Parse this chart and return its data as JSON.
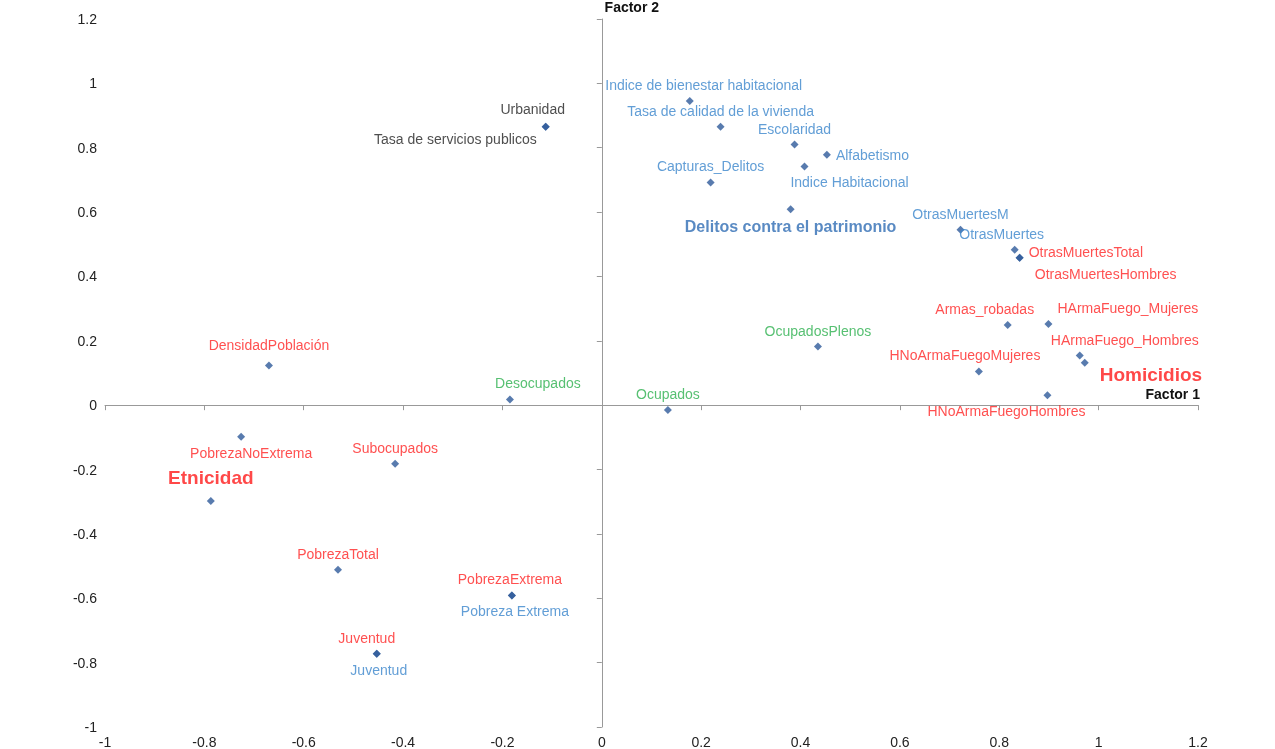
{
  "chart_data": {
    "type": "scatter",
    "xlabel": "Factor 1",
    "ylabel": "Factor 2",
    "xlim": [
      -1,
      1.2
    ],
    "ylim": [
      -1,
      1.2
    ],
    "xticks": [
      -1,
      -0.8,
      -0.6,
      -0.4,
      -0.2,
      0,
      0.2,
      0.4,
      0.6,
      0.8,
      1,
      1.2
    ],
    "yticks": [
      -1,
      -0.8,
      -0.6,
      -0.4,
      -0.2,
      0,
      0.2,
      0.4,
      0.6,
      0.8,
      1,
      1.2
    ],
    "marker": "diamond",
    "series": [
      {
        "color": "#2e5a9a",
        "x": [
          0.177,
          0.239,
          0.388,
          0.453,
          0.408,
          0.219,
          0.722,
          0.831,
          -0.181,
          -0.453
        ],
        "values": [
          0.945,
          0.865,
          0.81,
          0.778,
          0.742,
          0.692,
          0.545,
          0.483,
          -0.591,
          -0.772
        ],
        "value_labels": [
          "Indice de bienestar habitacional",
          "Tasa de calidad de la vivienda",
          "Escolaridad",
          "Alfabetismo",
          "Indice Habitacional",
          "Capturas_Delitos",
          "OtrasMuertesM",
          "OtrasMuertes",
          "Pobreza Extrema",
          "Juventud"
        ]
      },
      {
        "color": "#2e5a9a",
        "x": [
          0.38
        ],
        "values": [
          0.609
        ],
        "value_labels": [
          "Delitos contra el patrimonio"
        ]
      },
      {
        "color": "#2e5a9a",
        "x": [
          -0.113,
          -0.113
        ],
        "values": [
          0.865,
          0.865
        ],
        "value_labels": [
          "Urbanidad",
          "Tasa de servicios publicos"
        ]
      },
      {
        "color": "#2e5a9a",
        "x": [
          0.841,
          0.841,
          0.817,
          0.899,
          0.962,
          0.759,
          0.897,
          -0.67,
          -0.726,
          -0.416,
          -0.531,
          -0.181,
          -0.453
        ],
        "values": [
          0.458,
          0.458,
          0.249,
          0.252,
          0.154,
          0.105,
          0.031,
          0.123,
          -0.098,
          -0.182,
          -0.511,
          -0.591,
          -0.772
        ],
        "value_labels": [
          "OtrasMuertesTotal",
          "OtrasMuertesHombres",
          "Armas_robadas",
          "HArmaFuego_Mujeres",
          "HArmaFuego_Hombres",
          "HNoArmaFuegoMujeres",
          "HNoArmaFuegoHombres",
          "DensidadPoblación",
          "PobrezaNoExtrema",
          "Subocupados",
          "PobrezaTotal",
          "PobrezaExtrema",
          "Juventud"
        ]
      },
      {
        "color": "#2e5a9a",
        "x": [
          0.972,
          -0.787
        ],
        "values": [
          0.132,
          -0.298
        ],
        "value_labels": [
          "Homicidios",
          "Etnicidad"
        ]
      },
      {
        "color": "#2e5a9a",
        "x": [
          0.435,
          -0.185,
          0.133
        ],
        "values": [
          0.182,
          0.018,
          -0.015
        ],
        "value_labels": [
          "OcupadosPlenos",
          "Desocupados",
          "Ocupados"
        ]
      }
    ]
  }
}
